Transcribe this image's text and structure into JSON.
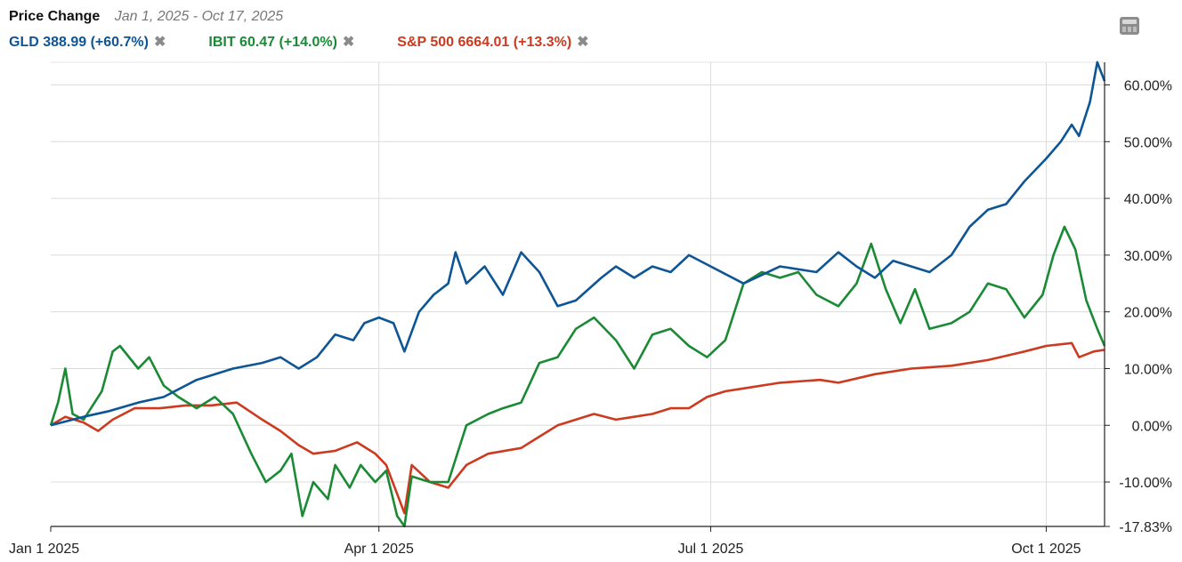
{
  "header": {
    "title": "Price Change",
    "date_range": "Jan 1, 2025 - Oct 17, 2025"
  },
  "legend": [
    {
      "label": "GLD 388.99 (+60.7%)",
      "color": "#0e5596",
      "close": "✖"
    },
    {
      "label": "IBIT 60.47 (+14.0%)",
      "color": "#1a8a35",
      "close": "✖"
    },
    {
      "label": "S&P 500 6664.01 (+13.3%)",
      "color": "#cc3a1f",
      "close": "✖"
    }
  ],
  "toolbar": {
    "icon": "calculator-icon"
  },
  "chart_data": {
    "type": "line",
    "x_range": [
      "2025-01-01",
      "2025-10-17"
    ],
    "ylim": [
      -17.83,
      64
    ],
    "y_ticks": [
      60,
      50,
      40,
      30,
      20,
      10,
      0,
      -10,
      -17.83
    ],
    "y_tick_labels": [
      "60.00%",
      "50.00%",
      "40.00%",
      "30.00%",
      "20.00%",
      "10.00%",
      "0.00%",
      "-10.00%",
      "-17.83%"
    ],
    "x_ticks": [
      "2025-01-01",
      "2025-04-01",
      "2025-07-01",
      "2025-10-01"
    ],
    "x_tick_labels": [
      "Jan 1 2025",
      "Apr 1 2025",
      "Jul 1 2025",
      "Oct 1 2025"
    ],
    "grid": true,
    "series": [
      {
        "name": "GLD",
        "color": "#0e5596",
        "points": [
          [
            "2025-01-01",
            0
          ],
          [
            "2025-01-10",
            1.5
          ],
          [
            "2025-01-17",
            2.5
          ],
          [
            "2025-01-25",
            4
          ],
          [
            "2025-02-01",
            5
          ],
          [
            "2025-02-10",
            8
          ],
          [
            "2025-02-20",
            10
          ],
          [
            "2025-02-28",
            11
          ],
          [
            "2025-03-05",
            12
          ],
          [
            "2025-03-10",
            10
          ],
          [
            "2025-03-15",
            12
          ],
          [
            "2025-03-20",
            16
          ],
          [
            "2025-03-25",
            15
          ],
          [
            "2025-03-28",
            18
          ],
          [
            "2025-04-01",
            19
          ],
          [
            "2025-04-05",
            18
          ],
          [
            "2025-04-08",
            13
          ],
          [
            "2025-04-12",
            20
          ],
          [
            "2025-04-16",
            23
          ],
          [
            "2025-04-20",
            25
          ],
          [
            "2025-04-22",
            30.5
          ],
          [
            "2025-04-25",
            25
          ],
          [
            "2025-04-30",
            28
          ],
          [
            "2025-05-05",
            23
          ],
          [
            "2025-05-10",
            30.5
          ],
          [
            "2025-05-15",
            27
          ],
          [
            "2025-05-20",
            21
          ],
          [
            "2025-05-25",
            22
          ],
          [
            "2025-06-01",
            26
          ],
          [
            "2025-06-05",
            28
          ],
          [
            "2025-06-10",
            26
          ],
          [
            "2025-06-15",
            28
          ],
          [
            "2025-06-20",
            27
          ],
          [
            "2025-06-25",
            30
          ],
          [
            "2025-07-01",
            28
          ],
          [
            "2025-07-10",
            25
          ],
          [
            "2025-07-20",
            28
          ],
          [
            "2025-07-30",
            27
          ],
          [
            "2025-08-05",
            30.5
          ],
          [
            "2025-08-10",
            28
          ],
          [
            "2025-08-15",
            26
          ],
          [
            "2025-08-20",
            29
          ],
          [
            "2025-08-25",
            28
          ],
          [
            "2025-08-30",
            27
          ],
          [
            "2025-09-05",
            30
          ],
          [
            "2025-09-10",
            35
          ],
          [
            "2025-09-15",
            38
          ],
          [
            "2025-09-20",
            39
          ],
          [
            "2025-09-25",
            43
          ],
          [
            "2025-10-01",
            47
          ],
          [
            "2025-10-05",
            50
          ],
          [
            "2025-10-08",
            53
          ],
          [
            "2025-10-10",
            51
          ],
          [
            "2025-10-13",
            57
          ],
          [
            "2025-10-15",
            64
          ],
          [
            "2025-10-17",
            60.7
          ]
        ]
      },
      {
        "name": "IBIT",
        "color": "#1a8a35",
        "points": [
          [
            "2025-01-01",
            0
          ],
          [
            "2025-01-03",
            4
          ],
          [
            "2025-01-05",
            10
          ],
          [
            "2025-01-07",
            2
          ],
          [
            "2025-01-10",
            1
          ],
          [
            "2025-01-15",
            6
          ],
          [
            "2025-01-18",
            13
          ],
          [
            "2025-01-20",
            14
          ],
          [
            "2025-01-25",
            10
          ],
          [
            "2025-01-28",
            12
          ],
          [
            "2025-02-01",
            7
          ],
          [
            "2025-02-05",
            5
          ],
          [
            "2025-02-10",
            3
          ],
          [
            "2025-02-15",
            5
          ],
          [
            "2025-02-20",
            2
          ],
          [
            "2025-02-25",
            -5
          ],
          [
            "2025-03-01",
            -10
          ],
          [
            "2025-03-05",
            -8
          ],
          [
            "2025-03-08",
            -5
          ],
          [
            "2025-03-11",
            -16
          ],
          [
            "2025-03-14",
            -10
          ],
          [
            "2025-03-18",
            -13
          ],
          [
            "2025-03-20",
            -7
          ],
          [
            "2025-03-24",
            -11
          ],
          [
            "2025-03-27",
            -7
          ],
          [
            "2025-03-31",
            -10
          ],
          [
            "2025-04-03",
            -8
          ],
          [
            "2025-04-06",
            -16
          ],
          [
            "2025-04-08",
            -17.8
          ],
          [
            "2025-04-10",
            -9
          ],
          [
            "2025-04-15",
            -10
          ],
          [
            "2025-04-20",
            -10
          ],
          [
            "2025-04-25",
            0
          ],
          [
            "2025-05-01",
            2
          ],
          [
            "2025-05-05",
            3
          ],
          [
            "2025-05-10",
            4
          ],
          [
            "2025-05-15",
            11
          ],
          [
            "2025-05-20",
            12
          ],
          [
            "2025-05-25",
            17
          ],
          [
            "2025-05-30",
            19
          ],
          [
            "2025-06-05",
            15
          ],
          [
            "2025-06-10",
            10
          ],
          [
            "2025-06-15",
            16
          ],
          [
            "2025-06-20",
            17
          ],
          [
            "2025-06-25",
            14
          ],
          [
            "2025-06-30",
            12
          ],
          [
            "2025-07-05",
            15
          ],
          [
            "2025-07-10",
            25
          ],
          [
            "2025-07-15",
            27
          ],
          [
            "2025-07-20",
            26
          ],
          [
            "2025-07-25",
            27
          ],
          [
            "2025-07-30",
            23
          ],
          [
            "2025-08-05",
            21
          ],
          [
            "2025-08-10",
            25
          ],
          [
            "2025-08-14",
            32
          ],
          [
            "2025-08-18",
            24
          ],
          [
            "2025-08-22",
            18
          ],
          [
            "2025-08-26",
            24
          ],
          [
            "2025-08-30",
            17
          ],
          [
            "2025-09-05",
            18
          ],
          [
            "2025-09-10",
            20
          ],
          [
            "2025-09-15",
            25
          ],
          [
            "2025-09-20",
            24
          ],
          [
            "2025-09-25",
            19
          ],
          [
            "2025-09-30",
            23
          ],
          [
            "2025-10-03",
            30
          ],
          [
            "2025-10-06",
            35
          ],
          [
            "2025-10-09",
            31
          ],
          [
            "2025-10-12",
            22
          ],
          [
            "2025-10-15",
            17
          ],
          [
            "2025-10-17",
            14
          ]
        ]
      },
      {
        "name": "S&P 500",
        "color": "#cc3a1f",
        "points": [
          [
            "2025-01-01",
            0
          ],
          [
            "2025-01-05",
            1.5
          ],
          [
            "2025-01-10",
            0.5
          ],
          [
            "2025-01-14",
            -1
          ],
          [
            "2025-01-18",
            1
          ],
          [
            "2025-01-24",
            3
          ],
          [
            "2025-01-31",
            3
          ],
          [
            "2025-02-07",
            3.5
          ],
          [
            "2025-02-14",
            3.5
          ],
          [
            "2025-02-21",
            4
          ],
          [
            "2025-02-28",
            1
          ],
          [
            "2025-03-05",
            -1
          ],
          [
            "2025-03-10",
            -3.5
          ],
          [
            "2025-03-14",
            -5
          ],
          [
            "2025-03-20",
            -4.5
          ],
          [
            "2025-03-26",
            -3
          ],
          [
            "2025-03-31",
            -5
          ],
          [
            "2025-04-03",
            -7
          ],
          [
            "2025-04-08",
            -15.5
          ],
          [
            "2025-04-10",
            -7
          ],
          [
            "2025-04-15",
            -10
          ],
          [
            "2025-04-20",
            -11
          ],
          [
            "2025-04-25",
            -7
          ],
          [
            "2025-05-01",
            -5
          ],
          [
            "2025-05-10",
            -4
          ],
          [
            "2025-05-15",
            -2
          ],
          [
            "2025-05-20",
            0
          ],
          [
            "2025-05-25",
            1
          ],
          [
            "2025-05-30",
            2
          ],
          [
            "2025-06-05",
            1
          ],
          [
            "2025-06-10",
            1.5
          ],
          [
            "2025-06-15",
            2
          ],
          [
            "2025-06-20",
            3
          ],
          [
            "2025-06-25",
            3
          ],
          [
            "2025-06-30",
            5
          ],
          [
            "2025-07-05",
            6
          ],
          [
            "2025-07-10",
            6.5
          ],
          [
            "2025-07-20",
            7.5
          ],
          [
            "2025-07-31",
            8
          ],
          [
            "2025-08-05",
            7.5
          ],
          [
            "2025-08-15",
            9
          ],
          [
            "2025-08-25",
            10
          ],
          [
            "2025-09-05",
            10.5
          ],
          [
            "2025-09-15",
            11.5
          ],
          [
            "2025-09-25",
            13
          ],
          [
            "2025-10-01",
            14
          ],
          [
            "2025-10-08",
            14.5
          ],
          [
            "2025-10-10",
            12
          ],
          [
            "2025-10-14",
            13
          ],
          [
            "2025-10-17",
            13.3
          ]
        ]
      }
    ]
  }
}
